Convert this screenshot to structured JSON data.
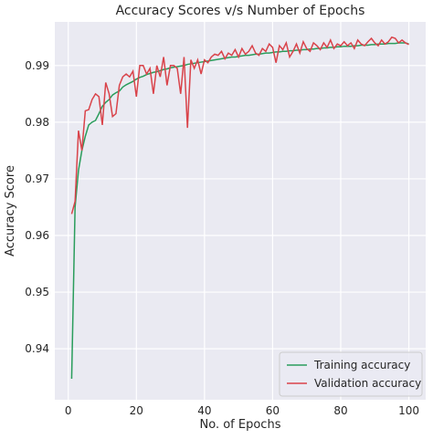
{
  "chart_data": {
    "type": "line",
    "title": "Accuracy Scores v/s Number of Epochs",
    "x_label": "No. of Epochs",
    "y_label": "Accuracy Score",
    "x": [
      1,
      2,
      3,
      4,
      5,
      6,
      7,
      8,
      9,
      10,
      11,
      12,
      13,
      14,
      15,
      16,
      17,
      18,
      19,
      20,
      21,
      22,
      23,
      24,
      25,
      26,
      27,
      28,
      29,
      30,
      31,
      32,
      33,
      34,
      35,
      36,
      37,
      38,
      39,
      40,
      41,
      42,
      43,
      44,
      45,
      46,
      47,
      48,
      49,
      50,
      51,
      52,
      53,
      54,
      55,
      56,
      57,
      58,
      59,
      60,
      61,
      62,
      63,
      64,
      65,
      66,
      67,
      68,
      69,
      70,
      71,
      72,
      73,
      74,
      75,
      76,
      77,
      78,
      79,
      80,
      81,
      82,
      83,
      84,
      85,
      86,
      87,
      88,
      89,
      90,
      91,
      92,
      93,
      94,
      95,
      96,
      97,
      98,
      99,
      100
    ],
    "series": [
      {
        "name": "Training accuracy",
        "color": "#2a9d5c",
        "values": [
          0.9347,
          0.965,
          0.9715,
          0.975,
          0.9775,
          0.9795,
          0.98,
          0.9803,
          0.9815,
          0.9828,
          0.9835,
          0.984,
          0.9848,
          0.9852,
          0.9855,
          0.9862,
          0.9866,
          0.9869,
          0.9872,
          0.9876,
          0.9879,
          0.9881,
          0.9884,
          0.9886,
          0.9888,
          0.9889,
          0.9891,
          0.9893,
          0.9894,
          0.9896,
          0.9897,
          0.9898,
          0.9899,
          0.99,
          0.9902,
          0.9903,
          0.9904,
          0.9905,
          0.9906,
          0.9907,
          0.9908,
          0.9909,
          0.991,
          0.9911,
          0.9912,
          0.9913,
          0.9914,
          0.9915,
          0.9915,
          0.9916,
          0.9917,
          0.9918,
          0.9918,
          0.9919,
          0.992,
          0.992,
          0.9921,
          0.9922,
          0.9922,
          0.9923,
          0.9924,
          0.9924,
          0.9925,
          0.9925,
          0.9926,
          0.9926,
          0.9927,
          0.9927,
          0.9928,
          0.9928,
          0.9929,
          0.9929,
          0.993,
          0.993,
          0.9931,
          0.9931,
          0.9932,
          0.9932,
          0.9933,
          0.9933,
          0.9934,
          0.9934,
          0.9934,
          0.9935,
          0.9935,
          0.9936,
          0.9936,
          0.9936,
          0.9937,
          0.9937,
          0.9938,
          0.9938,
          0.9938,
          0.9939,
          0.9939,
          0.9939,
          0.994,
          0.994,
          0.994,
          0.9938
        ]
      },
      {
        "name": "Validation accuracy",
        "color": "#d9434a",
        "values": [
          0.9638,
          0.966,
          0.9785,
          0.975,
          0.982,
          0.9822,
          0.984,
          0.985,
          0.9845,
          0.9795,
          0.987,
          0.985,
          0.981,
          0.9815,
          0.9865,
          0.988,
          0.9885,
          0.988,
          0.989,
          0.9845,
          0.99,
          0.99,
          0.9885,
          0.9895,
          0.985,
          0.99,
          0.988,
          0.9915,
          0.9865,
          0.99,
          0.99,
          0.9895,
          0.985,
          0.9915,
          0.979,
          0.991,
          0.9895,
          0.991,
          0.9885,
          0.991,
          0.9905,
          0.9915,
          0.992,
          0.9918,
          0.9925,
          0.9912,
          0.9922,
          0.9918,
          0.9928,
          0.9915,
          0.993,
          0.992,
          0.9925,
          0.9935,
          0.9922,
          0.9918,
          0.993,
          0.9925,
          0.9938,
          0.9932,
          0.9905,
          0.9935,
          0.9928,
          0.994,
          0.9915,
          0.9925,
          0.9938,
          0.9922,
          0.9942,
          0.993,
          0.9925,
          0.994,
          0.9935,
          0.9928,
          0.994,
          0.9932,
          0.9945,
          0.993,
          0.9938,
          0.9935,
          0.9942,
          0.9935,
          0.994,
          0.993,
          0.9945,
          0.9938,
          0.9935,
          0.9942,
          0.9948,
          0.994,
          0.9935,
          0.9945,
          0.9938,
          0.9942,
          0.995,
          0.9948,
          0.994,
          0.9945,
          0.994,
          0.9937
        ]
      }
    ],
    "xlim": [
      -3.95,
      104.95
    ],
    "xticks": [
      0,
      20,
      40,
      60,
      80,
      100
    ],
    "ylim": [
      0.931,
      0.9977
    ],
    "yticks": [
      0.94,
      0.95,
      0.96,
      0.97,
      0.98,
      0.99
    ],
    "grid": true,
    "legend": "lower right"
  }
}
